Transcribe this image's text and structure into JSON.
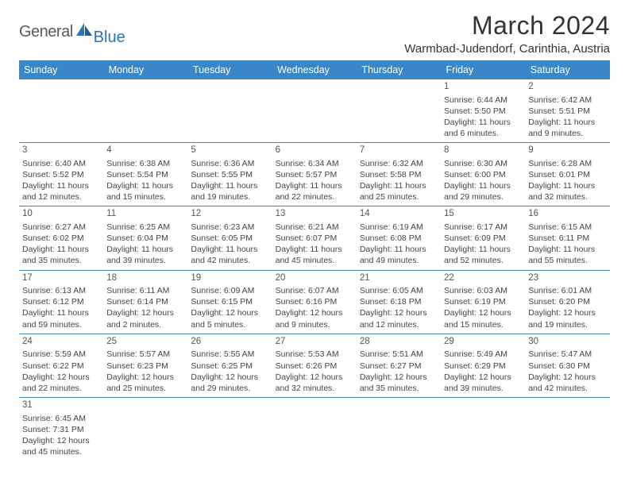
{
  "brand": {
    "general": "General",
    "blue": "Blue"
  },
  "title": "March 2024",
  "location": "Warmbad-Judendorf, Carinthia, Austria",
  "colors": {
    "header_bg": "#3b86c6",
    "header_text": "#ffffff",
    "border": "#3b86c6",
    "text": "#444444",
    "title": "#333333",
    "logo_gray": "#5a5a5a",
    "logo_blue": "#2b73b8",
    "background": "#ffffff"
  },
  "typography": {
    "title_fontsize": 32,
    "location_fontsize": 15,
    "dayhead_fontsize": 12.5,
    "cell_fontsize": 10.5,
    "daynum_fontsize": 11.5
  },
  "weekdays": [
    "Sunday",
    "Monday",
    "Tuesday",
    "Wednesday",
    "Thursday",
    "Friday",
    "Saturday"
  ],
  "calendar": {
    "type": "table",
    "rows": [
      [
        null,
        null,
        null,
        null,
        null,
        {
          "n": "1",
          "sr": "Sunrise: 6:44 AM",
          "ss": "Sunset: 5:50 PM",
          "d1": "Daylight: 11 hours",
          "d2": "and 6 minutes."
        },
        {
          "n": "2",
          "sr": "Sunrise: 6:42 AM",
          "ss": "Sunset: 5:51 PM",
          "d1": "Daylight: 11 hours",
          "d2": "and 9 minutes."
        }
      ],
      [
        {
          "n": "3",
          "sr": "Sunrise: 6:40 AM",
          "ss": "Sunset: 5:52 PM",
          "d1": "Daylight: 11 hours",
          "d2": "and 12 minutes."
        },
        {
          "n": "4",
          "sr": "Sunrise: 6:38 AM",
          "ss": "Sunset: 5:54 PM",
          "d1": "Daylight: 11 hours",
          "d2": "and 15 minutes."
        },
        {
          "n": "5",
          "sr": "Sunrise: 6:36 AM",
          "ss": "Sunset: 5:55 PM",
          "d1": "Daylight: 11 hours",
          "d2": "and 19 minutes."
        },
        {
          "n": "6",
          "sr": "Sunrise: 6:34 AM",
          "ss": "Sunset: 5:57 PM",
          "d1": "Daylight: 11 hours",
          "d2": "and 22 minutes."
        },
        {
          "n": "7",
          "sr": "Sunrise: 6:32 AM",
          "ss": "Sunset: 5:58 PM",
          "d1": "Daylight: 11 hours",
          "d2": "and 25 minutes."
        },
        {
          "n": "8",
          "sr": "Sunrise: 6:30 AM",
          "ss": "Sunset: 6:00 PM",
          "d1": "Daylight: 11 hours",
          "d2": "and 29 minutes."
        },
        {
          "n": "9",
          "sr": "Sunrise: 6:28 AM",
          "ss": "Sunset: 6:01 PM",
          "d1": "Daylight: 11 hours",
          "d2": "and 32 minutes."
        }
      ],
      [
        {
          "n": "10",
          "sr": "Sunrise: 6:27 AM",
          "ss": "Sunset: 6:02 PM",
          "d1": "Daylight: 11 hours",
          "d2": "and 35 minutes."
        },
        {
          "n": "11",
          "sr": "Sunrise: 6:25 AM",
          "ss": "Sunset: 6:04 PM",
          "d1": "Daylight: 11 hours",
          "d2": "and 39 minutes."
        },
        {
          "n": "12",
          "sr": "Sunrise: 6:23 AM",
          "ss": "Sunset: 6:05 PM",
          "d1": "Daylight: 11 hours",
          "d2": "and 42 minutes."
        },
        {
          "n": "13",
          "sr": "Sunrise: 6:21 AM",
          "ss": "Sunset: 6:07 PM",
          "d1": "Daylight: 11 hours",
          "d2": "and 45 minutes."
        },
        {
          "n": "14",
          "sr": "Sunrise: 6:19 AM",
          "ss": "Sunset: 6:08 PM",
          "d1": "Daylight: 11 hours",
          "d2": "and 49 minutes."
        },
        {
          "n": "15",
          "sr": "Sunrise: 6:17 AM",
          "ss": "Sunset: 6:09 PM",
          "d1": "Daylight: 11 hours",
          "d2": "and 52 minutes."
        },
        {
          "n": "16",
          "sr": "Sunrise: 6:15 AM",
          "ss": "Sunset: 6:11 PM",
          "d1": "Daylight: 11 hours",
          "d2": "and 55 minutes."
        }
      ],
      [
        {
          "n": "17",
          "sr": "Sunrise: 6:13 AM",
          "ss": "Sunset: 6:12 PM",
          "d1": "Daylight: 11 hours",
          "d2": "and 59 minutes."
        },
        {
          "n": "18",
          "sr": "Sunrise: 6:11 AM",
          "ss": "Sunset: 6:14 PM",
          "d1": "Daylight: 12 hours",
          "d2": "and 2 minutes."
        },
        {
          "n": "19",
          "sr": "Sunrise: 6:09 AM",
          "ss": "Sunset: 6:15 PM",
          "d1": "Daylight: 12 hours",
          "d2": "and 5 minutes."
        },
        {
          "n": "20",
          "sr": "Sunrise: 6:07 AM",
          "ss": "Sunset: 6:16 PM",
          "d1": "Daylight: 12 hours",
          "d2": "and 9 minutes."
        },
        {
          "n": "21",
          "sr": "Sunrise: 6:05 AM",
          "ss": "Sunset: 6:18 PM",
          "d1": "Daylight: 12 hours",
          "d2": "and 12 minutes."
        },
        {
          "n": "22",
          "sr": "Sunrise: 6:03 AM",
          "ss": "Sunset: 6:19 PM",
          "d1": "Daylight: 12 hours",
          "d2": "and 15 minutes."
        },
        {
          "n": "23",
          "sr": "Sunrise: 6:01 AM",
          "ss": "Sunset: 6:20 PM",
          "d1": "Daylight: 12 hours",
          "d2": "and 19 minutes."
        }
      ],
      [
        {
          "n": "24",
          "sr": "Sunrise: 5:59 AM",
          "ss": "Sunset: 6:22 PM",
          "d1": "Daylight: 12 hours",
          "d2": "and 22 minutes."
        },
        {
          "n": "25",
          "sr": "Sunrise: 5:57 AM",
          "ss": "Sunset: 6:23 PM",
          "d1": "Daylight: 12 hours",
          "d2": "and 25 minutes."
        },
        {
          "n": "26",
          "sr": "Sunrise: 5:55 AM",
          "ss": "Sunset: 6:25 PM",
          "d1": "Daylight: 12 hours",
          "d2": "and 29 minutes."
        },
        {
          "n": "27",
          "sr": "Sunrise: 5:53 AM",
          "ss": "Sunset: 6:26 PM",
          "d1": "Daylight: 12 hours",
          "d2": "and 32 minutes."
        },
        {
          "n": "28",
          "sr": "Sunrise: 5:51 AM",
          "ss": "Sunset: 6:27 PM",
          "d1": "Daylight: 12 hours",
          "d2": "and 35 minutes."
        },
        {
          "n": "29",
          "sr": "Sunrise: 5:49 AM",
          "ss": "Sunset: 6:29 PM",
          "d1": "Daylight: 12 hours",
          "d2": "and 39 minutes."
        },
        {
          "n": "30",
          "sr": "Sunrise: 5:47 AM",
          "ss": "Sunset: 6:30 PM",
          "d1": "Daylight: 12 hours",
          "d2": "and 42 minutes."
        }
      ],
      [
        {
          "n": "31",
          "sr": "Sunrise: 6:45 AM",
          "ss": "Sunset: 7:31 PM",
          "d1": "Daylight: 12 hours",
          "d2": "and 45 minutes."
        },
        null,
        null,
        null,
        null,
        null,
        null
      ]
    ]
  }
}
